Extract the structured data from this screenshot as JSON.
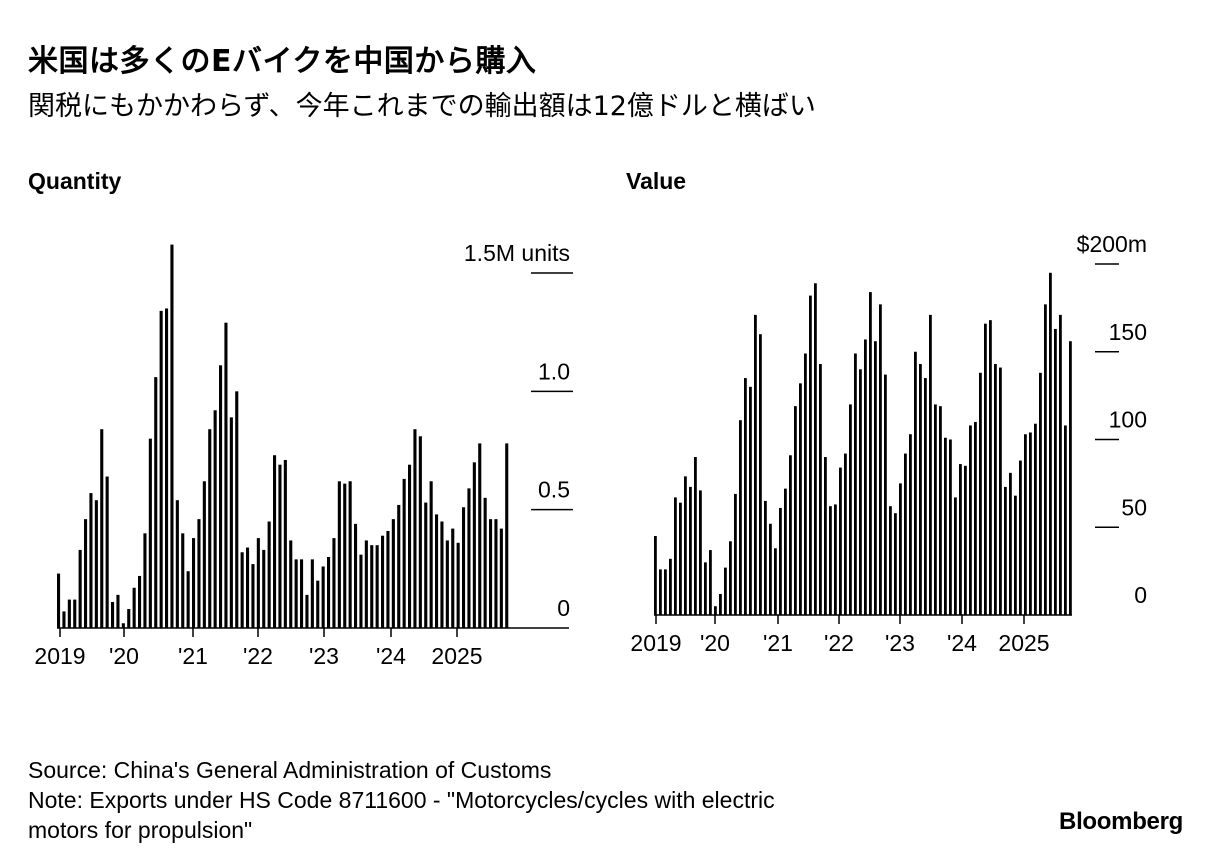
{
  "title": "米国は多くのEバイクを中国から購入",
  "subtitle": "関税にもかかわらず、今年これまでの輸出額は12億ドルと横ばい",
  "footer": {
    "source": "Source: China's General Administration of Customs",
    "note_line1": "Note: Exports under HS Code 8711600 - \"Motorcycles/cycles with electric",
    "note_line2": "motors for propulsion\""
  },
  "brand": "Bloomberg",
  "colors": {
    "bar": "#000000",
    "background": "#ffffff"
  },
  "chart_data": [
    {
      "type": "bar",
      "title": "Quantity",
      "unit_label": "1.5M units",
      "ylim": [
        0,
        1.5
      ],
      "yticks": [
        0,
        0.5,
        1.0,
        1.5
      ],
      "ytick_labels": [
        "0",
        "0.5",
        "1.0",
        "1.5M units"
      ],
      "xtick_labels": [
        "2019",
        "'20",
        "'21",
        "'22",
        "'23",
        "'24",
        "2025"
      ],
      "start": "2019-01",
      "values": [
        0.23,
        0.07,
        0.12,
        0.12,
        0.33,
        0.46,
        0.57,
        0.54,
        0.84,
        0.64,
        0.11,
        0.14,
        0.02,
        0.08,
        0.17,
        0.22,
        0.4,
        0.8,
        1.06,
        1.34,
        1.35,
        1.62,
        0.54,
        0.4,
        0.24,
        0.38,
        0.46,
        0.62,
        0.84,
        0.92,
        1.11,
        1.29,
        0.89,
        1.0,
        0.32,
        0.34,
        0.27,
        0.38,
        0.33,
        0.45,
        0.73,
        0.69,
        0.71,
        0.37,
        0.29,
        0.29,
        0.14,
        0.29,
        0.2,
        0.26,
        0.3,
        0.38,
        0.62,
        0.61,
        0.62,
        0.44,
        0.31,
        0.37,
        0.35,
        0.35,
        0.39,
        0.41,
        0.46,
        0.52,
        0.63,
        0.69,
        0.84,
        0.81,
        0.53,
        0.62,
        0.48,
        0.45,
        0.37,
        0.42,
        0.36,
        0.51,
        0.59,
        0.7,
        0.78,
        0.55,
        0.46,
        0.46,
        0.42,
        0.78
      ]
    },
    {
      "type": "bar",
      "title": "Value",
      "unit_label": "$200m",
      "ylim": [
        0,
        200
      ],
      "yticks": [
        0,
        50,
        100,
        150,
        200
      ],
      "ytick_labels": [
        "0",
        "50",
        "100",
        "150",
        "$200m"
      ],
      "xtick_labels": [
        "2019",
        "'20",
        "'21",
        "'22",
        "'23",
        "'24",
        "2025"
      ],
      "start": "2019-01",
      "values": [
        45,
        26,
        26,
        32,
        67,
        64,
        79,
        73,
        90,
        71,
        30,
        37,
        5,
        12,
        27,
        42,
        69,
        111,
        135,
        130,
        171,
        160,
        65,
        52,
        38,
        61,
        72,
        91,
        119,
        132,
        149,
        182,
        189,
        143,
        90,
        62,
        63,
        84,
        92,
        120,
        149,
        140,
        157,
        184,
        156,
        177,
        137,
        62,
        58,
        75,
        92,
        103,
        150,
        143,
        135,
        171,
        120,
        119,
        101,
        100,
        67,
        86,
        85,
        108,
        110,
        138,
        166,
        168,
        143,
        141,
        73,
        81,
        68,
        88,
        103,
        104,
        109,
        138,
        177,
        195,
        163,
        171,
        108,
        156
      ]
    }
  ]
}
